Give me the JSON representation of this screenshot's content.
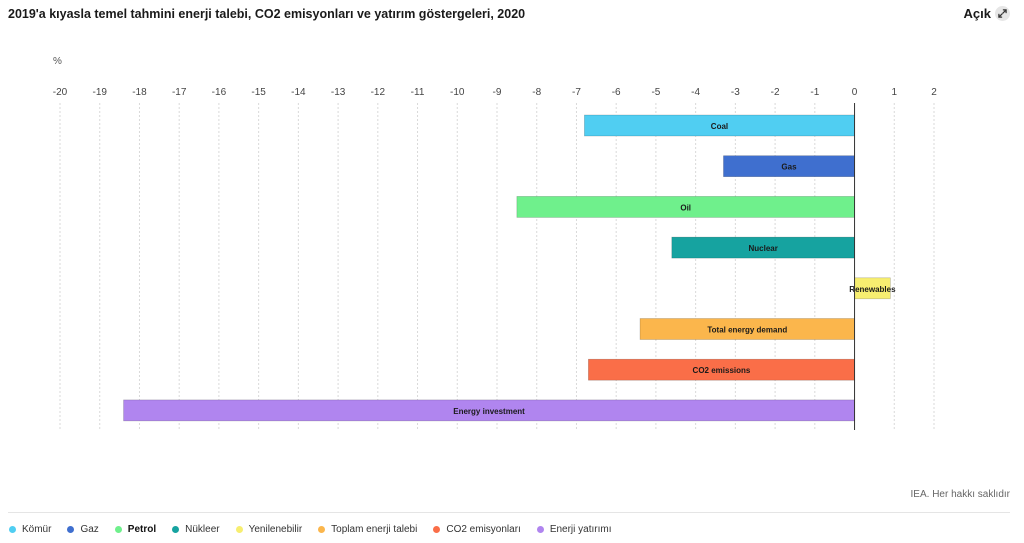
{
  "header": {
    "title": "2019'a kıyasla temel tahmini enerji talebi, CO2 emisyonları ve yatırım göstergeleri, 2020",
    "open_label": "Açık"
  },
  "footer": {
    "source": "IEA. Her hakkı saklıdır"
  },
  "legend": [
    {
      "label": "Kömür",
      "color": "#50cef2",
      "bold": false
    },
    {
      "label": "Gaz",
      "color": "#3f6fcf",
      "bold": false
    },
    {
      "label": "Petrol",
      "color": "#6ff08c",
      "bold": true
    },
    {
      "label": "Nükleer",
      "color": "#16a3a0",
      "bold": false
    },
    {
      "label": "Yenilenebilir",
      "color": "#f7ee70",
      "bold": false
    },
    {
      "label": "Toplam enerji talebi",
      "color": "#fbb64c",
      "bold": false
    },
    {
      "label": "CO2 emisyonları",
      "color": "#fa6e48",
      "bold": false
    },
    {
      "label": "Enerji yatırımı",
      "color": "#b085ef",
      "bold": false
    }
  ],
  "chart_data": {
    "type": "bar",
    "orientation": "horizontal",
    "ylabel": "%",
    "xlim": [
      -20,
      2
    ],
    "ticks": [
      "-20",
      "-19",
      "-18",
      "-17",
      "-16",
      "-15",
      "-14",
      "-13",
      "-12",
      "-11",
      "-10",
      "-9",
      "-8",
      "-7",
      "-6",
      "-5",
      "-4",
      "-3",
      "-2",
      "-1",
      "0",
      "1",
      "2"
    ],
    "grid": true,
    "categories": [
      "Coal",
      "Gas",
      "Oil",
      "Nuclear",
      "Renewables",
      "Total energy demand",
      "CO2 emissions",
      "Energy investment"
    ],
    "values": [
      -6.8,
      -3.3,
      -8.5,
      -4.6,
      0.9,
      -5.4,
      -6.7,
      -18.4
    ],
    "colors": [
      "#50cef2",
      "#3f6fcf",
      "#6ff08c",
      "#16a3a0",
      "#f7ee70",
      "#fbb64c",
      "#fa6e48",
      "#b085ef"
    ]
  }
}
